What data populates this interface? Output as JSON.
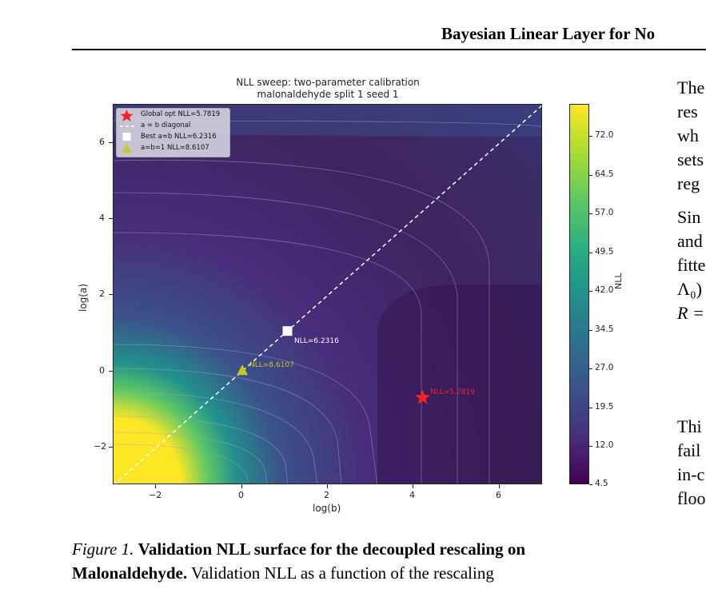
{
  "header": {
    "running_title": "Bayesian Linear Layer for No"
  },
  "figure": {
    "title_line1": "NLL sweep: two-parameter calibration",
    "title_line2": "malonaldehyde  split 1  seed 1",
    "xlabel": "log(b)",
    "ylabel": "log(a)",
    "colorbar_label": "NLL",
    "legend": [
      {
        "marker": "red-star",
        "label": "Global opt  NLL=5.7819"
      },
      {
        "marker": "white-dashed-line",
        "label": "a = b diagonal"
      },
      {
        "marker": "white-square",
        "label": "Best a=b  NLL=6.2316"
      },
      {
        "marker": "olive-triangle",
        "label": "a=b=1  NLL=8.6107"
      }
    ],
    "annotations": {
      "global_opt": "NLL=5.7819",
      "best_diag": "NLL=6.2316",
      "unit": "NLL=8.6107"
    },
    "colors": {
      "global_opt": "#ff1f1f",
      "best_diag": "#ffffff",
      "unit": "#c8c81e",
      "diagonal": "#ffffff"
    }
  },
  "chart_data": {
    "type": "heatmap",
    "title": "NLL sweep: two-parameter calibration\nmalonaldehyde  split 1  seed 1",
    "xlabel": "log(b)",
    "ylabel": "log(a)",
    "xlim": [
      -3,
      7
    ],
    "ylim": [
      -3,
      7
    ],
    "x_ticks": [
      "−2",
      "0",
      "2",
      "4",
      "6"
    ],
    "y_ticks": [
      "−2",
      "0",
      "2",
      "4",
      "6"
    ],
    "colorbar": {
      "label": "NLL",
      "range": [
        4.5,
        78
      ],
      "ticks": [
        "72.0",
        "64.5",
        "57.0",
        "49.5",
        "42.0",
        "34.5",
        "27.0",
        "19.5",
        "12.0",
        "4.5"
      ],
      "colormap": "viridis"
    },
    "points": [
      {
        "name": "Global opt",
        "x": 4.2,
        "y": -0.7,
        "nll": 5.7819
      },
      {
        "name": "Best a=b",
        "x": 1.05,
        "y": 1.05,
        "nll": 6.2316
      },
      {
        "name": "a=b=1",
        "x": 0,
        "y": 0,
        "nll": 8.6107
      }
    ],
    "diagonal": {
      "name": "a = b diagonal",
      "from": [
        -3,
        -3
      ],
      "to": [
        7,
        7
      ]
    },
    "legend_position": "top-left"
  },
  "caption": {
    "label": "Figure 1.",
    "bold": "Validation NLL surface for the decoupled rescaling on Malonaldehyde.",
    "text": " Validation NLL as a function of the rescaling"
  },
  "right_column": [
    "The",
    "res",
    "wh",
    "sets",
    "reg",
    "Sin",
    "and",
    "fitte",
    "Λ₀)",
    "R =",
    "Thi",
    "fail",
    "in-c",
    "floo"
  ]
}
